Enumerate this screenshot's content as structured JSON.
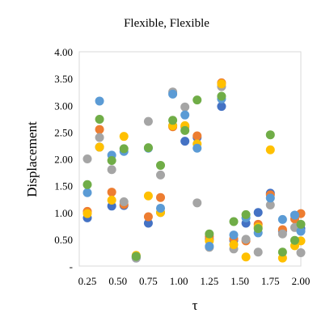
{
  "chart_data": {
    "type": "scatter",
    "title": "Flexible,  Flexible",
    "xlabel": "τ",
    "ylabel": "Displacement",
    "xlim": [
      0.25,
      2.0
    ],
    "ylim": [
      0,
      4.0
    ],
    "x_ticks": [
      "0.25",
      "0.50",
      "0.75",
      "1.00",
      "1.25",
      "1.50",
      "1.75",
      "2.00"
    ],
    "y_ticks": [
      "-",
      "0.50",
      "1.00",
      "1.50",
      "2.00",
      "2.50",
      "3.00",
      "3.50",
      "4.00"
    ],
    "grid": false,
    "legend": "none",
    "series": [
      {
        "color": "#4472c4",
        "points": [
          [
            0.25,
            0.9
          ],
          [
            0.35,
            2.22
          ],
          [
            0.45,
            1.12
          ],
          [
            0.55,
            1.13
          ],
          [
            0.65,
            0.15
          ],
          [
            0.75,
            0.8
          ],
          [
            0.85,
            1.0
          ],
          [
            0.95,
            2.62
          ],
          [
            1.05,
            2.33
          ],
          [
            1.15,
            2.4
          ],
          [
            1.25,
            0.5
          ],
          [
            1.35,
            2.98
          ],
          [
            1.45,
            0.48
          ],
          [
            1.55,
            0.8
          ],
          [
            1.65,
            1.0
          ],
          [
            1.75,
            1.36
          ],
          [
            1.85,
            0.65
          ],
          [
            1.95,
            0.95
          ],
          [
            2.0,
            0.7
          ]
        ]
      },
      {
        "color": "#ed7d31",
        "points": [
          [
            0.25,
            1.02
          ],
          [
            0.35,
            2.55
          ],
          [
            0.45,
            1.38
          ],
          [
            0.55,
            1.15
          ],
          [
            0.65,
            0.17
          ],
          [
            0.75,
            0.92
          ],
          [
            0.85,
            1.28
          ],
          [
            0.95,
            2.6
          ],
          [
            1.05,
            2.6
          ],
          [
            1.15,
            2.43
          ],
          [
            1.25,
            0.55
          ],
          [
            1.35,
            3.42
          ],
          [
            1.45,
            0.51
          ],
          [
            1.55,
            0.47
          ],
          [
            1.65,
            0.78
          ],
          [
            1.75,
            1.33
          ],
          [
            1.85,
            0.68
          ],
          [
            1.95,
            0.88
          ],
          [
            2.0,
            0.98
          ]
        ]
      },
      {
        "color": "#a5a5a5",
        "points": [
          [
            0.25,
            2.0
          ],
          [
            0.35,
            2.4
          ],
          [
            0.45,
            1.8
          ],
          [
            0.55,
            1.2
          ],
          [
            0.65,
            0.15
          ],
          [
            0.75,
            2.7
          ],
          [
            0.85,
            1.7
          ],
          [
            0.95,
            3.25
          ],
          [
            1.05,
            2.97
          ],
          [
            1.15,
            1.18
          ],
          [
            1.25,
            0.35
          ],
          [
            1.35,
            3.35
          ],
          [
            1.45,
            0.32
          ],
          [
            1.55,
            0.5
          ],
          [
            1.65,
            0.26
          ],
          [
            1.75,
            1.14
          ],
          [
            1.85,
            0.6
          ],
          [
            1.95,
            0.72
          ],
          [
            2.0,
            0.25
          ]
        ]
      },
      {
        "color": "#ffc000",
        "points": [
          [
            0.25,
            0.98
          ],
          [
            0.35,
            2.22
          ],
          [
            0.45,
            1.23
          ],
          [
            0.55,
            2.42
          ],
          [
            0.65,
            0.2
          ],
          [
            0.75,
            1.31
          ],
          [
            0.85,
            1.0
          ],
          [
            0.95,
            2.62
          ],
          [
            1.05,
            2.62
          ],
          [
            1.15,
            2.28
          ],
          [
            1.25,
            0.47
          ],
          [
            1.35,
            3.4
          ],
          [
            1.45,
            0.4
          ],
          [
            1.55,
            0.17
          ],
          [
            1.65,
            0.73
          ],
          [
            1.75,
            2.17
          ],
          [
            1.85,
            0.15
          ],
          [
            1.95,
            0.38
          ],
          [
            2.0,
            0.47
          ]
        ]
      },
      {
        "color": "#5b9bd5",
        "points": [
          [
            0.25,
            1.37
          ],
          [
            0.35,
            3.08
          ],
          [
            0.45,
            2.07
          ],
          [
            0.55,
            2.14
          ],
          [
            0.65,
            0.18
          ],
          [
            0.75,
            2.2
          ],
          [
            0.85,
            1.08
          ],
          [
            0.95,
            3.21
          ],
          [
            1.05,
            2.82
          ],
          [
            1.15,
            2.2
          ],
          [
            1.25,
            0.37
          ],
          [
            1.35,
            3.12
          ],
          [
            1.45,
            0.58
          ],
          [
            1.55,
            0.9
          ],
          [
            1.65,
            0.62
          ],
          [
            1.75,
            1.27
          ],
          [
            1.85,
            0.87
          ],
          [
            1.95,
            0.95
          ],
          [
            2.0,
            0.65
          ]
        ]
      },
      {
        "color": "#70ad47",
        "points": [
          [
            0.25,
            1.52
          ],
          [
            0.35,
            2.74
          ],
          [
            0.45,
            1.97
          ],
          [
            0.55,
            2.19
          ],
          [
            0.65,
            0.18
          ],
          [
            0.75,
            2.21
          ],
          [
            0.85,
            1.88
          ],
          [
            0.95,
            2.72
          ],
          [
            1.05,
            2.53
          ],
          [
            1.15,
            3.1
          ],
          [
            1.25,
            0.6
          ],
          [
            1.35,
            3.17
          ],
          [
            1.45,
            0.83
          ],
          [
            1.55,
            0.96
          ],
          [
            1.65,
            0.7
          ],
          [
            1.75,
            2.45
          ],
          [
            1.85,
            0.26
          ],
          [
            1.95,
            0.48
          ],
          [
            2.0,
            0.78
          ]
        ]
      }
    ]
  }
}
